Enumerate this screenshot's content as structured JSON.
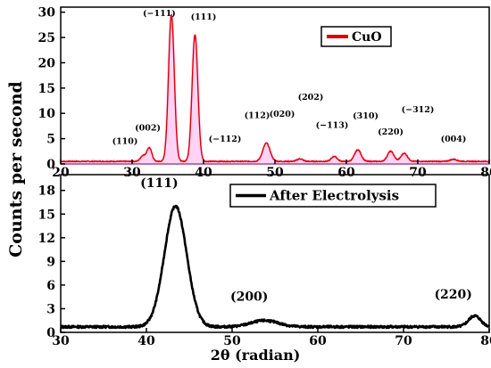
{
  "y_axis_label": "Counts per second",
  "x_axis_label": "2θ (radian)",
  "chart_data": [
    {
      "type": "line",
      "legend": "CuO",
      "legend_position": "top-right",
      "xlim": [
        20,
        80
      ],
      "ylim": [
        0,
        31
      ],
      "xticks": [
        "20",
        "30",
        "40",
        "50",
        "60",
        "70",
        "80"
      ],
      "yticks": [
        "0",
        "5",
        "10",
        "15",
        "20",
        "25",
        "30"
      ],
      "color": "#dd0000",
      "fill_color": "#ffb0f0",
      "peaks": [
        {
          "x": 31.5,
          "y": 1.6,
          "w": 0.35
        },
        {
          "x": 32.4,
          "y": 3.2,
          "w": 0.35
        },
        {
          "x": 35.5,
          "y": 29.5,
          "w": 0.4
        },
        {
          "x": 38.8,
          "y": 25.5,
          "w": 0.4
        },
        {
          "x": 48.8,
          "y": 4.1,
          "w": 0.5
        },
        {
          "x": 53.5,
          "y": 1.0,
          "w": 0.4
        },
        {
          "x": 58.3,
          "y": 1.5,
          "w": 0.4
        },
        {
          "x": 61.6,
          "y": 2.8,
          "w": 0.45
        },
        {
          "x": 66.2,
          "y": 2.5,
          "w": 0.45
        },
        {
          "x": 68.1,
          "y": 2.1,
          "w": 0.45
        },
        {
          "x": 75.0,
          "y": 0.9,
          "w": 0.5
        }
      ],
      "annotations": [
        {
          "text": "(110)",
          "x": 29.0,
          "y": 4.0
        },
        {
          "text": "(002)",
          "x": 32.2,
          "y": 6.6
        },
        {
          "text": "(−111)",
          "x": 33.8,
          "y": 29.2
        },
        {
          "text": "(111)",
          "x": 40.0,
          "y": 28.5
        },
        {
          "text": "(−112)",
          "x": 43.0,
          "y": 4.4
        },
        {
          "text": "(112)",
          "x": 47.5,
          "y": 9.1
        },
        {
          "text": "(020)",
          "x": 51.0,
          "y": 9.3
        },
        {
          "text": "(202)",
          "x": 55.0,
          "y": 12.7
        },
        {
          "text": "(−113)",
          "x": 58.0,
          "y": 7.1
        },
        {
          "text": "(310)",
          "x": 62.7,
          "y": 9.0
        },
        {
          "text": "(220)",
          "x": 66.2,
          "y": 5.8
        },
        {
          "text": "(−312)",
          "x": 70.0,
          "y": 10.2
        },
        {
          "text": "(004)",
          "x": 75.0,
          "y": 4.4
        }
      ]
    },
    {
      "type": "line",
      "legend": "After Electrolysis",
      "legend_position": "top-right",
      "xlim": [
        30,
        80
      ],
      "ylim": [
        0,
        20
      ],
      "xticks": [
        "30",
        "40",
        "50",
        "60",
        "70",
        "80"
      ],
      "yticks": [
        "0",
        "3",
        "6",
        "9",
        "12",
        "15",
        "18"
      ],
      "color": "#000000",
      "peaks": [
        {
          "x": 43.4,
          "y": 16.0,
          "w": 1.3
        },
        {
          "x": 53.8,
          "y": 1.5,
          "w": 1.6
        },
        {
          "x": 78.3,
          "y": 2.1,
          "w": 0.7
        }
      ],
      "annotations": [
        {
          "text": "(111)",
          "x": 41.5,
          "y": 18.4
        },
        {
          "text": "(200)",
          "x": 52.0,
          "y": 4.0
        },
        {
          "text": "(220)",
          "x": 75.8,
          "y": 4.3
        }
      ]
    }
  ]
}
